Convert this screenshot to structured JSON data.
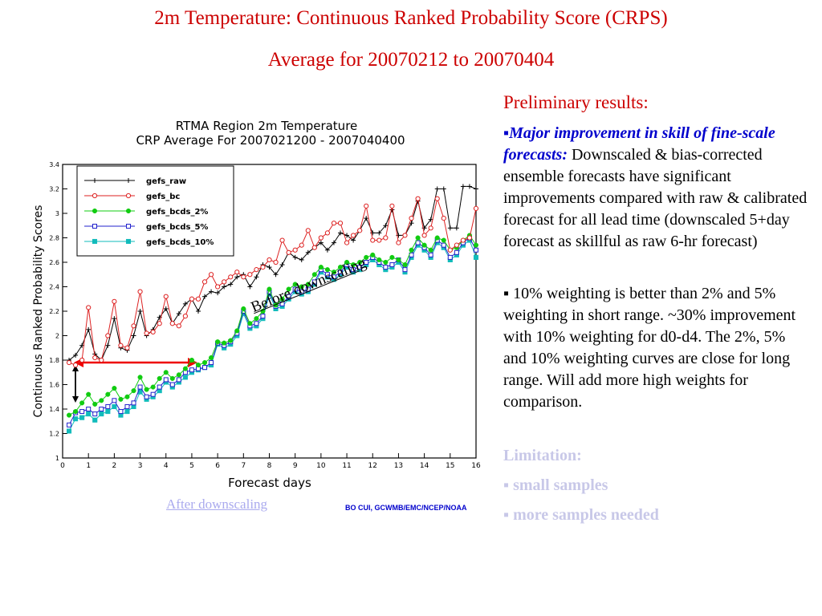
{
  "title_line1": "2m Temperature: Continuous Ranked Probability Score (CRPS)",
  "title_line2": "Average for 20070212 to 20070404",
  "panel": {
    "preliminary": "Preliminary results:",
    "bullet_symbol": "▪",
    "bullet1_emph": "Major improvement in skill of fine-scale forecasts:",
    "bullet1_text": " Downscaled & bias-corrected ensemble forecasts have significant improvements compared with raw & calibrated forecast for all lead time (downscaled 5+day forecast as skillful as raw 6-hr forecast)",
    "bullet2_text": " 10% weighting is better than 2% and 5% weighting in short range. ~30% improvement with 10% weighting for d0-d4. The 2%, 5% and 10% weighting curves are close for long range. Will add more high weights for comparison.",
    "limitation": "Limitation:",
    "lim1": "▪ small samples",
    "lim2": "▪ more samples needed"
  },
  "annotations": {
    "before": "Before downscaling",
    "after": "After downscaling"
  },
  "credit": "BO CUI, GCWMB/EMC/NCEP/NOAA",
  "colors": {
    "title_red": "#cc0000",
    "gefs_raw": "#000000",
    "gefs_bc": "#dd2222",
    "gefs_bcds_2": "#11cc11",
    "gefs_bcds_5": "#2222cc",
    "gefs_bcds_10": "#11bbbb"
  },
  "chart_data": {
    "type": "line",
    "title": "RTMA Region 2m Temperature",
    "subtitle": "CRP Average For 2007021200 - 2007040400",
    "xlabel": "Forecast days",
    "ylabel": "Continuous Ranked Probability Scores",
    "xlim": [
      0,
      16
    ],
    "ylim": [
      1,
      3.4
    ],
    "xticks": [
      "0",
      "1",
      "2",
      "3",
      "4",
      "5",
      "6",
      "7",
      "8",
      "9",
      "10",
      "11",
      "12",
      "13",
      "14",
      "15",
      "16"
    ],
    "yticks": [
      "1",
      "1.2",
      "1.4",
      "1.6",
      "1.8",
      "2",
      "2.2",
      "2.4",
      "2.6",
      "2.8",
      "3",
      "3.2",
      "3.4"
    ],
    "legend_position": "top-left",
    "x": [
      0.25,
      0.5,
      0.75,
      1,
      1.25,
      1.5,
      1.75,
      2,
      2.25,
      2.5,
      2.75,
      3,
      3.25,
      3.5,
      3.75,
      4,
      4.25,
      4.5,
      4.75,
      5,
      5.25,
      5.5,
      5.75,
      6,
      6.25,
      6.5,
      6.75,
      7,
      7.25,
      7.5,
      7.75,
      8,
      8.25,
      8.5,
      8.75,
      9,
      9.25,
      9.5,
      9.75,
      10,
      10.25,
      10.5,
      10.75,
      11,
      11.25,
      11.5,
      11.75,
      12,
      12.25,
      12.5,
      12.75,
      13,
      13.25,
      13.5,
      13.75,
      14,
      14.25,
      14.5,
      14.75,
      15,
      15.25,
      15.5,
      15.75,
      16
    ],
    "series": [
      {
        "name": "gefs_raw",
        "marker": "plus",
        "values": [
          1.8,
          1.84,
          1.92,
          2.05,
          1.85,
          1.8,
          1.92,
          2.14,
          1.9,
          1.88,
          2.0,
          2.2,
          2.0,
          2.05,
          2.15,
          2.22,
          2.1,
          2.18,
          2.26,
          2.3,
          2.2,
          2.32,
          2.36,
          2.35,
          2.4,
          2.42,
          2.48,
          2.5,
          2.4,
          2.48,
          2.58,
          2.56,
          2.5,
          2.58,
          2.68,
          2.64,
          2.62,
          2.68,
          2.72,
          2.76,
          2.7,
          2.76,
          2.84,
          2.82,
          2.78,
          2.86,
          2.96,
          2.84,
          2.84,
          2.9,
          3.03,
          2.82,
          2.82,
          2.92,
          3.1,
          2.88,
          2.95,
          3.2,
          3.2,
          2.88,
          2.88,
          3.22,
          3.22,
          3.2
        ]
      },
      {
        "name": "gefs_bc",
        "marker": "open-circle",
        "values": [
          1.78,
          1.76,
          1.8,
          2.23,
          1.82,
          1.8,
          2.0,
          2.28,
          1.92,
          1.9,
          2.08,
          2.36,
          2.02,
          2.03,
          2.1,
          2.32,
          2.1,
          2.08,
          2.16,
          2.3,
          2.3,
          2.44,
          2.5,
          2.4,
          2.44,
          2.48,
          2.52,
          2.48,
          2.5,
          2.54,
          2.56,
          2.62,
          2.6,
          2.78,
          2.68,
          2.7,
          2.74,
          2.86,
          2.72,
          2.8,
          2.84,
          2.92,
          2.92,
          2.76,
          2.82,
          2.86,
          3.06,
          2.78,
          2.78,
          2.8,
          3.06,
          2.76,
          2.82,
          2.96,
          3.12,
          2.82,
          2.88,
          3.12,
          2.96,
          2.7,
          2.74,
          2.78,
          2.8,
          3.04
        ]
      },
      {
        "name": "gefs_bcds_2%",
        "marker": "filled-circle",
        "values": [
          1.35,
          1.38,
          1.45,
          1.52,
          1.44,
          1.47,
          1.52,
          1.57,
          1.48,
          1.5,
          1.55,
          1.66,
          1.56,
          1.58,
          1.65,
          1.7,
          1.65,
          1.68,
          1.73,
          1.8,
          1.76,
          1.78,
          1.82,
          1.95,
          1.94,
          1.96,
          2.04,
          2.22,
          2.1,
          2.14,
          2.2,
          2.38,
          2.25,
          2.3,
          2.38,
          2.42,
          2.4,
          2.42,
          2.5,
          2.56,
          2.54,
          2.52,
          2.56,
          2.6,
          2.58,
          2.6,
          2.64,
          2.66,
          2.62,
          2.6,
          2.64,
          2.62,
          2.58,
          2.7,
          2.8,
          2.74,
          2.7,
          2.8,
          2.78,
          2.7,
          2.72,
          2.78,
          2.82,
          2.74
        ]
      },
      {
        "name": "gefs_bcds_5%",
        "marker": "open-square",
        "values": [
          1.27,
          1.37,
          1.38,
          1.4,
          1.36,
          1.4,
          1.42,
          1.47,
          1.38,
          1.42,
          1.45,
          1.58,
          1.5,
          1.52,
          1.58,
          1.64,
          1.6,
          1.64,
          1.7,
          1.72,
          1.73,
          1.74,
          1.78,
          1.94,
          1.92,
          1.95,
          2.02,
          2.2,
          2.08,
          2.1,
          2.16,
          2.36,
          2.24,
          2.26,
          2.32,
          2.38,
          2.36,
          2.38,
          2.44,
          2.54,
          2.5,
          2.48,
          2.52,
          2.58,
          2.54,
          2.56,
          2.6,
          2.64,
          2.6,
          2.56,
          2.58,
          2.62,
          2.54,
          2.66,
          2.76,
          2.72,
          2.66,
          2.78,
          2.74,
          2.64,
          2.68,
          2.76,
          2.8,
          2.7
        ]
      },
      {
        "name": "gefs_bcds_10%",
        "marker": "filled-square",
        "values": [
          1.22,
          1.32,
          1.33,
          1.36,
          1.31,
          1.36,
          1.38,
          1.42,
          1.35,
          1.38,
          1.42,
          1.54,
          1.48,
          1.5,
          1.55,
          1.62,
          1.58,
          1.62,
          1.66,
          1.7,
          1.72,
          1.74,
          1.76,
          1.93,
          1.9,
          1.93,
          2.0,
          2.18,
          2.06,
          2.08,
          2.14,
          2.34,
          2.22,
          2.24,
          2.3,
          2.36,
          2.34,
          2.36,
          2.42,
          2.52,
          2.48,
          2.46,
          2.5,
          2.56,
          2.52,
          2.54,
          2.58,
          2.62,
          2.58,
          2.54,
          2.56,
          2.6,
          2.52,
          2.64,
          2.74,
          2.7,
          2.64,
          2.76,
          2.72,
          2.62,
          2.66,
          2.74,
          2.78,
          2.64
        ]
      }
    ]
  }
}
